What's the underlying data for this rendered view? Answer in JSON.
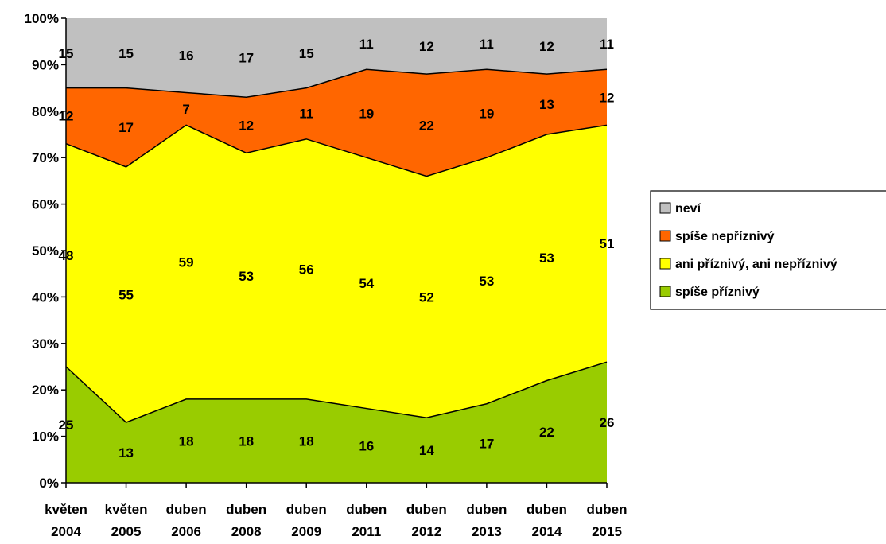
{
  "chart_data": {
    "type": "area",
    "stacked": true,
    "percent": true,
    "categories": [
      [
        "květen",
        "2004"
      ],
      [
        "květen",
        "2005"
      ],
      [
        "duben",
        "2006"
      ],
      [
        "duben",
        "2008"
      ],
      [
        "duben",
        "2009"
      ],
      [
        "duben",
        "2011"
      ],
      [
        "duben",
        "2012"
      ],
      [
        "duben",
        "2013"
      ],
      [
        "duben",
        "2014"
      ],
      [
        "duben",
        "2015"
      ]
    ],
    "y_ticks": [
      "0%",
      "10%",
      "20%",
      "30%",
      "40%",
      "50%",
      "60%",
      "70%",
      "80%",
      "90%",
      "100%"
    ],
    "ylim": [
      0,
      100
    ],
    "grid": false,
    "legend_position": "right",
    "series": [
      {
        "name": "spíše příznivý",
        "color": "#99cc00",
        "values": [
          25,
          13,
          18,
          18,
          18,
          16,
          14,
          17,
          22,
          26
        ]
      },
      {
        "name": "ani příznivý, ani nepříznivý",
        "color": "#ffff00",
        "values": [
          48,
          55,
          59,
          53,
          56,
          54,
          52,
          53,
          53,
          51
        ]
      },
      {
        "name": "spíše nepříznivý",
        "color": "#ff6600",
        "values": [
          12,
          17,
          7,
          12,
          11,
          19,
          22,
          19,
          13,
          12
        ]
      },
      {
        "name": "neví",
        "color": "#c0c0c0",
        "values": [
          15,
          15,
          16,
          17,
          15,
          11,
          12,
          11,
          12,
          11
        ]
      }
    ],
    "legend_order": [
      3,
      2,
      1,
      0
    ]
  }
}
